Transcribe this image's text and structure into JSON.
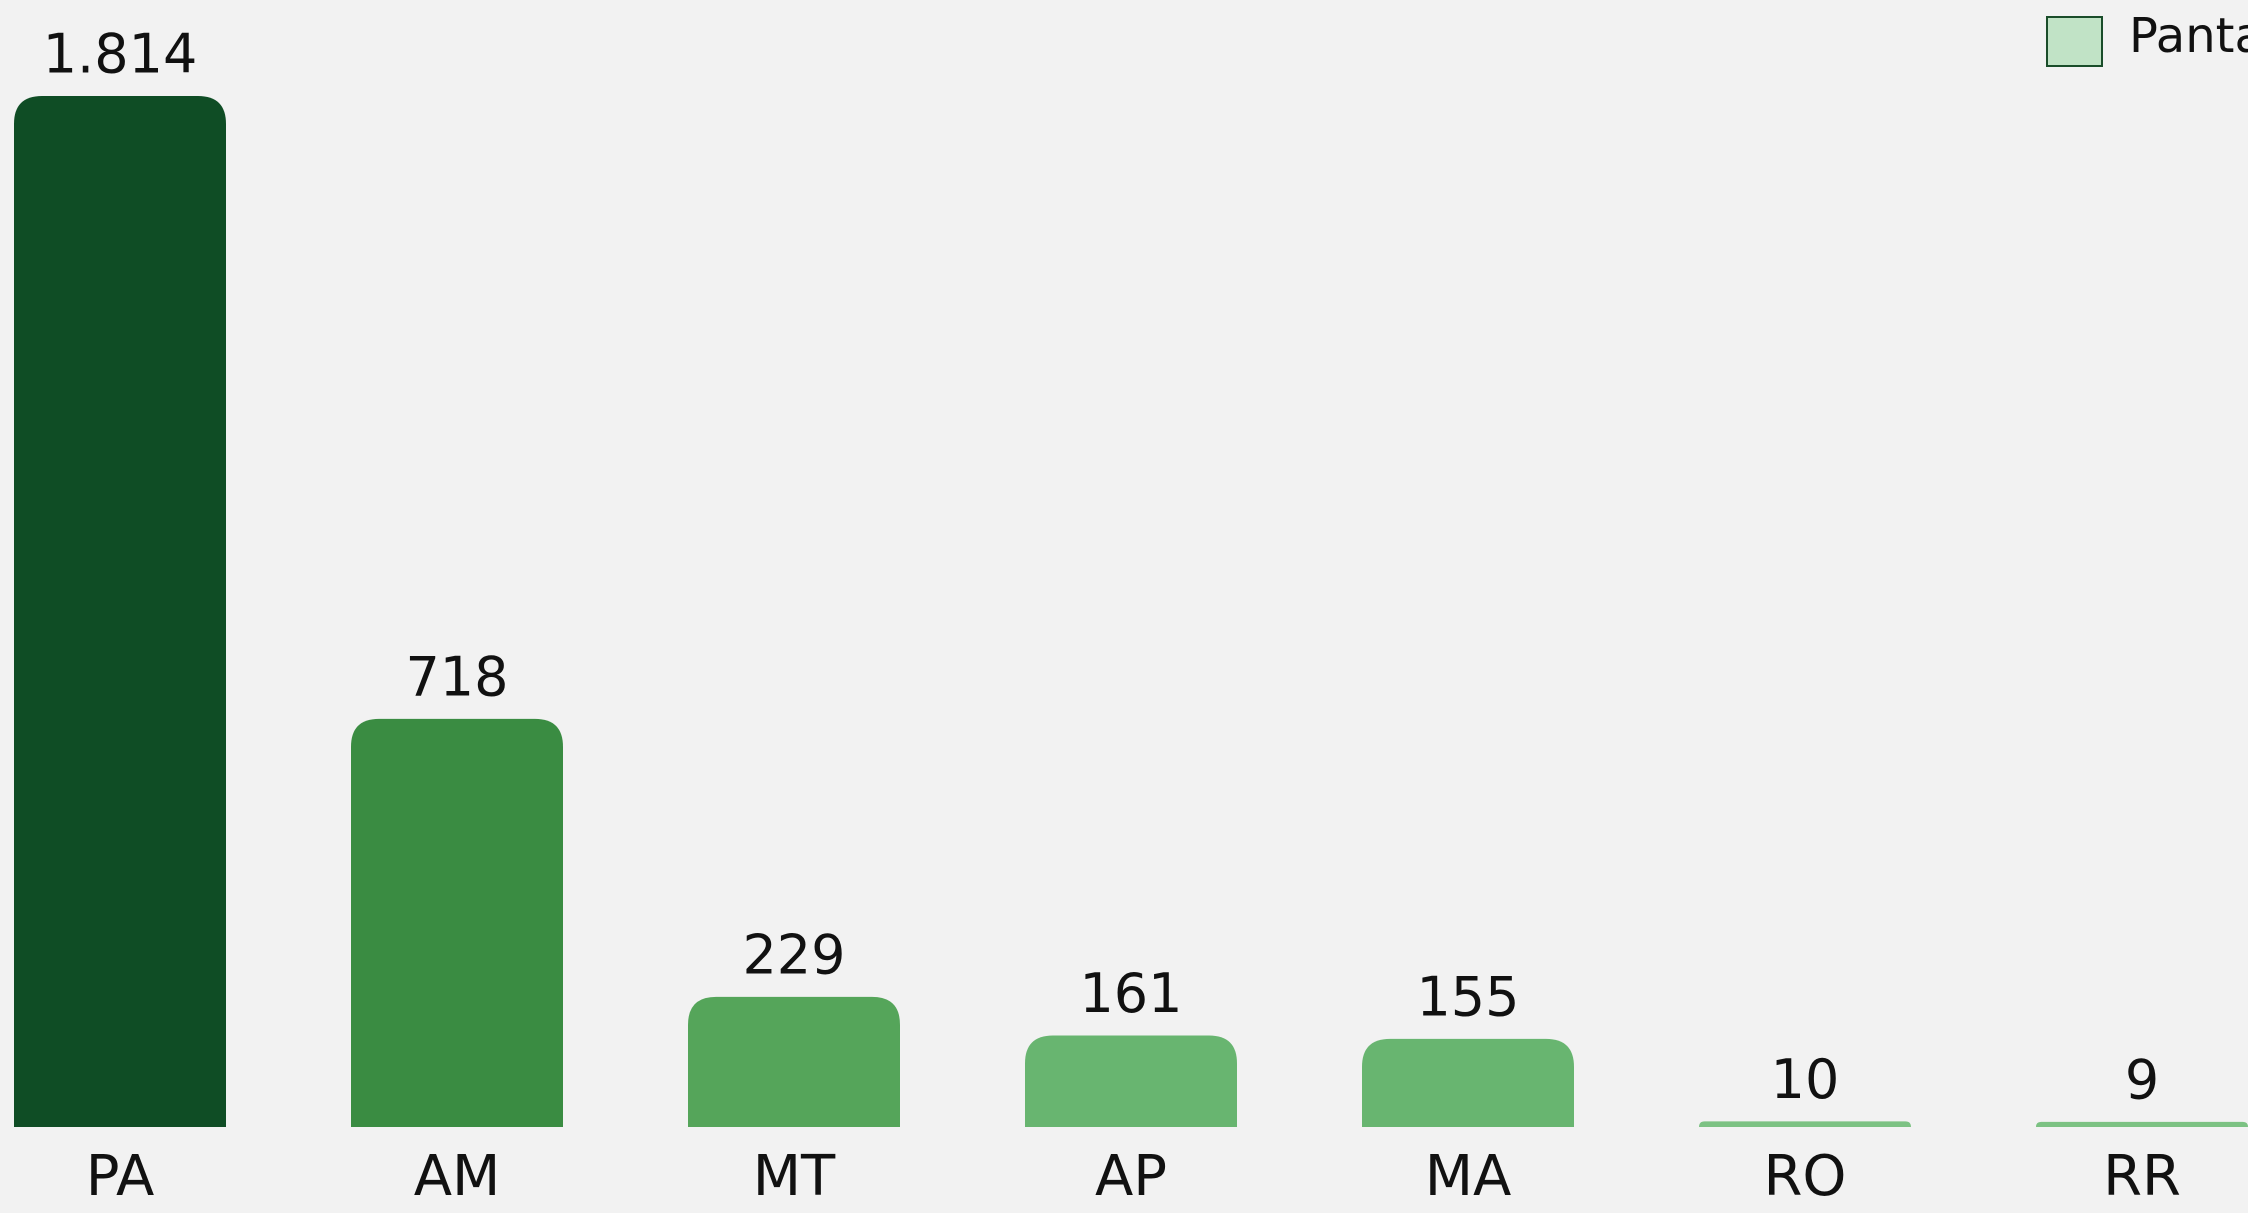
{
  "chart_data": {
    "type": "bar",
    "categories": [
      "PA",
      "AM",
      "MT",
      "AP",
      "MA",
      "RO",
      "RR"
    ],
    "values": [
      1814,
      718,
      229,
      161,
      155,
      10,
      9
    ],
    "value_labels": [
      "1.814",
      "718",
      "229",
      "161",
      "155",
      "10",
      "9"
    ],
    "colors": [
      "#0f4d25",
      "#3a8c42",
      "#55a55a",
      "#68b570",
      "#68b570",
      "#7cc283",
      "#7cc283"
    ],
    "legend": {
      "name": "Panta",
      "color": "#c1e3c6",
      "position": "top-right"
    }
  }
}
